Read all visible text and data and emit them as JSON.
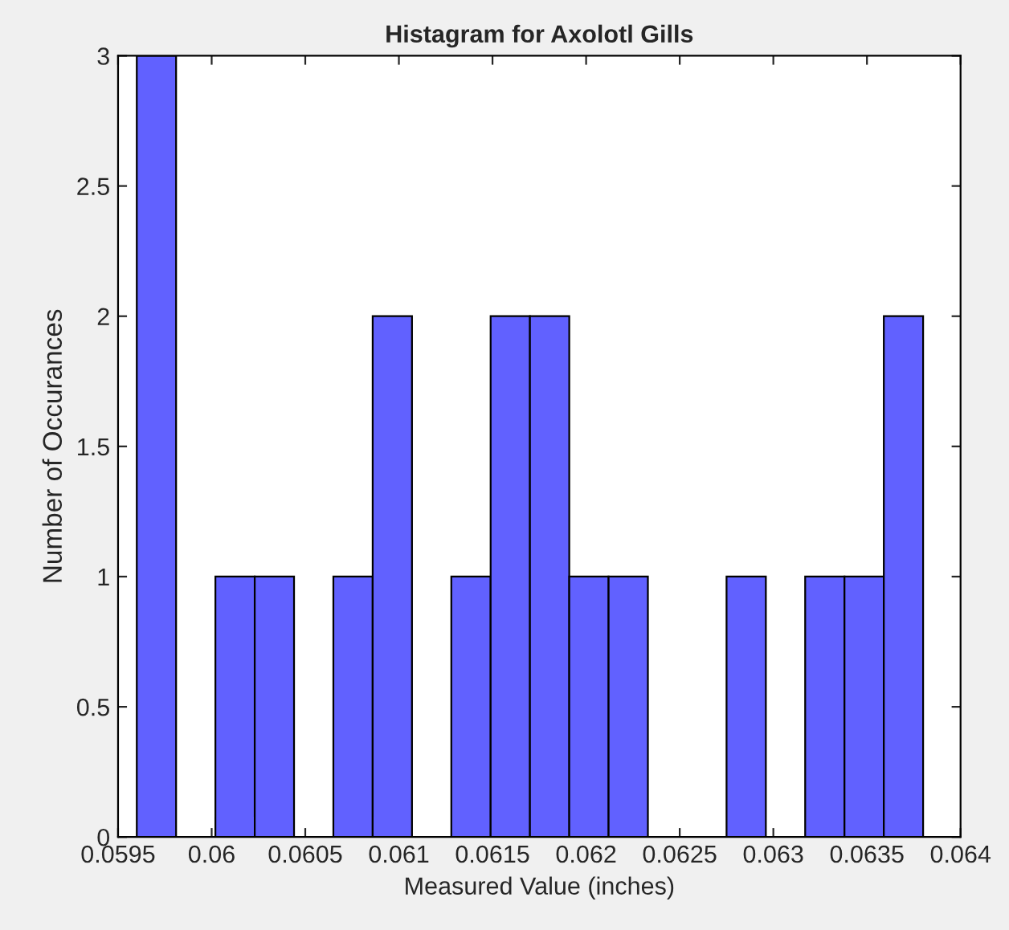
{
  "chart_data": {
    "type": "histogram",
    "title": "Histagram for Axolotl Gills",
    "xlabel": "Measured Value (inches)",
    "ylabel": "Number of Occurances",
    "bins": [
      0.0596,
      0.05981,
      0.06002,
      0.06023,
      0.06044,
      0.06065,
      0.06086,
      0.06107,
      0.06128,
      0.06149,
      0.0617,
      0.06191,
      0.06212,
      0.06233,
      0.06254,
      0.06275,
      0.06296,
      0.06317,
      0.06338,
      0.06359,
      0.0638
    ],
    "values": [
      3,
      0,
      1,
      1,
      0,
      1,
      2,
      0,
      1,
      2,
      2,
      1,
      1,
      0,
      0,
      1,
      0,
      1,
      1,
      2
    ],
    "color": "#6161ff",
    "xlim": [
      0.0595,
      0.064
    ],
    "xticks": [
      0.0595,
      0.06,
      0.0605,
      0.061,
      0.0615,
      0.062,
      0.0625,
      0.063,
      0.0635,
      0.064
    ],
    "ylim": [
      0,
      3
    ],
    "yticks": [
      0,
      0.5,
      1,
      1.5,
      2,
      2.5,
      3
    ],
    "grid": false
  }
}
